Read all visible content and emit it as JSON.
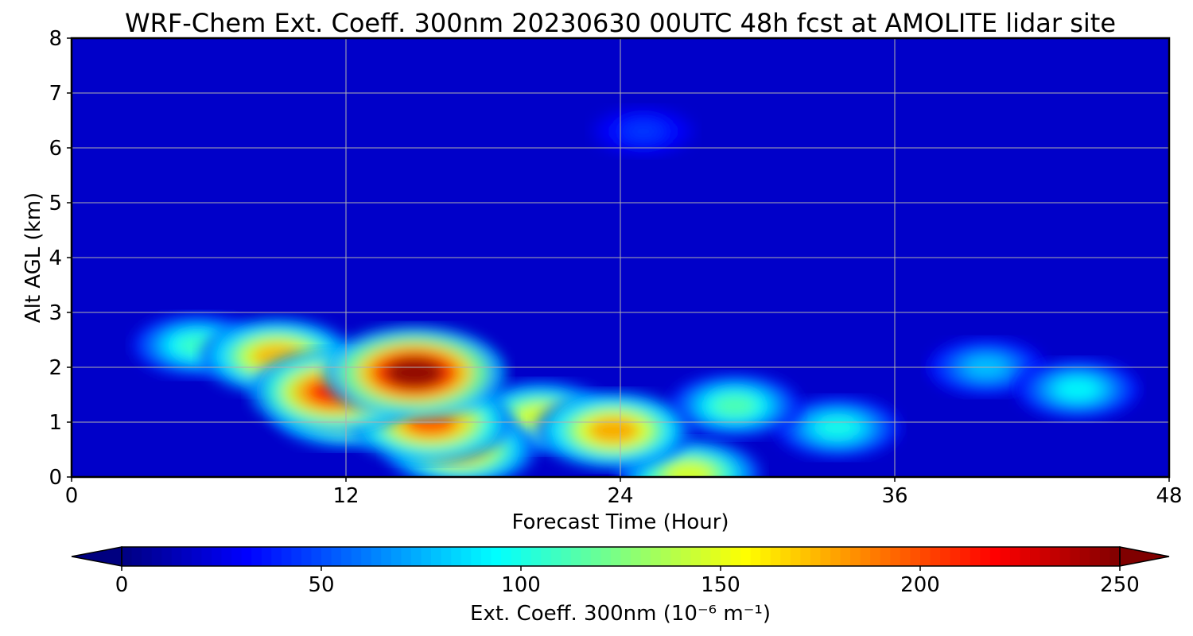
{
  "chart_data": {
    "type": "heatmap",
    "title": "WRF-Chem Ext. Coeff. 300nm  20230630 00UTC 48h fcst at AMOLITE lidar site",
    "xlabel": "Forecast Time (Hour)",
    "ylabel": "Alt AGL (km)",
    "xlim": [
      0,
      48
    ],
    "ylim": [
      0,
      8
    ],
    "x_ticks": [
      "0",
      "12",
      "24",
      "36",
      "48"
    ],
    "y_ticks": [
      "0",
      "1",
      "2",
      "3",
      "4",
      "5",
      "6",
      "7",
      "8"
    ],
    "grid": true,
    "colormap": "jet",
    "colorbar": {
      "label": "Ext. Coeff. 300nm  (10⁻⁶ m⁻¹)",
      "range": [
        0,
        250
      ],
      "extend": "both",
      "ticks": [
        "0",
        "50",
        "100",
        "150",
        "200",
        "250"
      ]
    },
    "background_value": 18,
    "features": [
      {
        "x": 15,
        "y": 1.9,
        "value": 250
      },
      {
        "x": 11.5,
        "y": 1.55,
        "value": 215
      },
      {
        "x": 15.7,
        "y": 1.0,
        "value": 200
      },
      {
        "x": 9,
        "y": 2.2,
        "value": 175
      },
      {
        "x": 12,
        "y": 1.2,
        "value": 165
      },
      {
        "x": 23.7,
        "y": 0.85,
        "value": 180
      },
      {
        "x": 20.5,
        "y": 1.1,
        "value": 150
      },
      {
        "x": 17,
        "y": 0.5,
        "value": 170
      },
      {
        "x": 5.5,
        "y": 2.4,
        "value": 110
      },
      {
        "x": 29,
        "y": 1.3,
        "value": 115
      },
      {
        "x": 33.5,
        "y": 0.9,
        "value": 100
      },
      {
        "x": 44,
        "y": 1.6,
        "value": 95
      },
      {
        "x": 40,
        "y": 2.0,
        "value": 80
      },
      {
        "x": 25,
        "y": 6.3,
        "value": 45
      },
      {
        "x": 27,
        "y": 0.05,
        "value": 150
      }
    ]
  }
}
